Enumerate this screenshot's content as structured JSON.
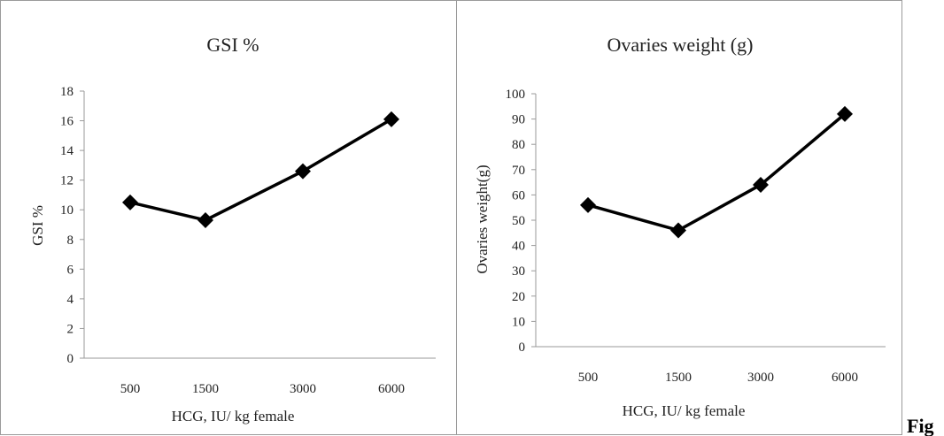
{
  "caption": "Fig",
  "chart_data": [
    {
      "type": "line",
      "title": "GSI %",
      "xlabel": "HCG, IU/ kg female",
      "ylabel": "GSI %",
      "categories": [
        "500",
        "1500",
        "3000",
        "6000"
      ],
      "series": [
        {
          "values": [
            10.5,
            9.3,
            12.6,
            16.1
          ]
        }
      ],
      "ylim": [
        0,
        18
      ],
      "ystep": 2,
      "grid": false,
      "legend": "none",
      "marker": "diamond",
      "color": "#000000"
    },
    {
      "type": "line",
      "title": "Ovaries weight (g)",
      "xlabel": "HCG, IU/ kg female",
      "ylabel": "Ovaries weight(g)",
      "categories": [
        "500",
        "1500",
        "3000",
        "6000"
      ],
      "series": [
        {
          "values": [
            56,
            46,
            64,
            92
          ]
        }
      ],
      "ylim": [
        0,
        100
      ],
      "ystep": 10,
      "grid": false,
      "legend": "none",
      "marker": "diamond",
      "color": "#000000"
    }
  ]
}
